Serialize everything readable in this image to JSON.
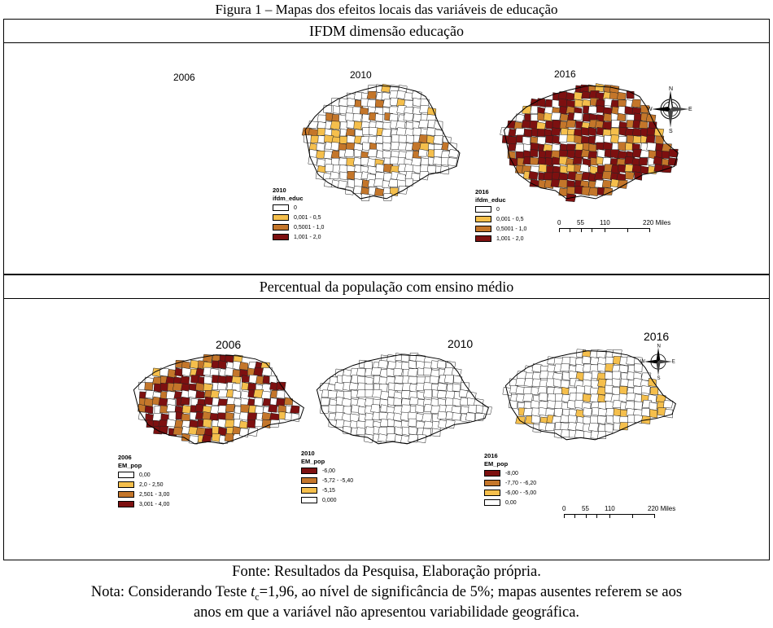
{
  "figure_title": "Figura 1 – Mapas dos efeitos locais das variáveis de educação",
  "colors": {
    "c0": "#ffffff",
    "c1": "#f5bf4c",
    "c2": "#c4762a",
    "c3": "#7d1010"
  },
  "panel1": {
    "title": "IFDM dimensão educação",
    "missing_year": "2006",
    "maps": [
      {
        "year": "2010",
        "legend_year": "2010",
        "legend_var": "ifdm_educ",
        "classes": [
          "0",
          "0,001 - 0,5",
          "0,5001 - 1,0",
          "1,001 - 2,0"
        ]
      },
      {
        "year": "2016",
        "legend_year": "2016",
        "legend_var": "ifdm_educ",
        "classes": [
          "0",
          "0,001 - 0,5",
          "0,5001 - 1,0",
          "1,001 - 2,0"
        ]
      }
    ],
    "scale": {
      "ticks": [
        "0",
        "55",
        "110",
        "220 Miles"
      ]
    },
    "compass": {
      "n": "N",
      "s": "S",
      "e": "E",
      "w": "W"
    }
  },
  "panel2": {
    "title": "Percentual da população com ensino médio",
    "maps": [
      {
        "year": "2006",
        "legend_year": "2006",
        "legend_var": "EM_pop",
        "classes": [
          "0,00",
          "2,0 - 2,50",
          "2,501 - 3,00",
          "3,001 - 4,00"
        ]
      },
      {
        "year": "2010",
        "legend_year": "2010",
        "legend_var": "EM_pop",
        "classes": [
          "-6,00",
          "-5,72 - -5,40",
          "-5,15",
          "0,000"
        ]
      },
      {
        "year": "2016",
        "legend_year": "2016",
        "legend_var": "EM_pop",
        "classes": [
          "-8,00",
          "-7,70 - -6,20",
          "-6,00 - -5,00",
          "0,00"
        ]
      }
    ],
    "scale": {
      "ticks": [
        "0",
        "55",
        "110",
        "220 Miles"
      ]
    },
    "compass": {
      "n": "N",
      "s": "S",
      "e": "E",
      "w": "W"
    }
  },
  "footer": {
    "source": "Fonte: Resultados da Pesquisa, Elaboração própria.",
    "note_prefix": "Nota: Considerando Teste ",
    "note_t": "t",
    "note_sub": "c",
    "note_rest": "=1,96, ao nível de significância de 5%; mapas ausentes referem se aos",
    "note_line2": "anos em que a variável não apresentou variabilidade geográfica."
  }
}
